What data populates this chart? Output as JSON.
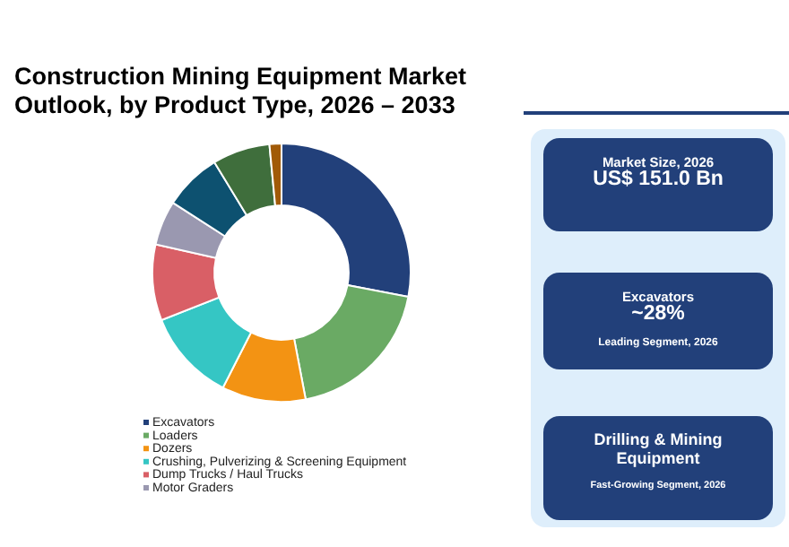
{
  "chart_data": {
    "type": "donut",
    "title": "Construction Mining Equipment Market Outlook, by Product Type, 2026 – 2033",
    "categories": [
      "Excavators",
      "Loaders",
      "Dozers",
      "Crushing, Pulverizing & Screening Equipment",
      "Dump Trucks / Haul Trucks",
      "Motor Graders",
      null,
      null,
      null
    ],
    "values": [
      28,
      19,
      10.5,
      11.5,
      9.5,
      5.6,
      7.2,
      7.2,
      1.5
    ],
    "colors": [
      "#22407a",
      "#6aaa64",
      "#f39313",
      "#35c6c4",
      "#d95f66",
      "#9a98b0",
      "#0d5170",
      "#3f6e3c",
      "#a15a07"
    ],
    "legend": "bottom",
    "annotations": [
      "Market Size, 2026",
      "US$ 151.0 Bn",
      "Excavators",
      "~28%",
      "Leading Segment, 2026",
      "Drilling & Mining Equipment",
      "Fast-Growing Segment, 2026"
    ]
  }
}
